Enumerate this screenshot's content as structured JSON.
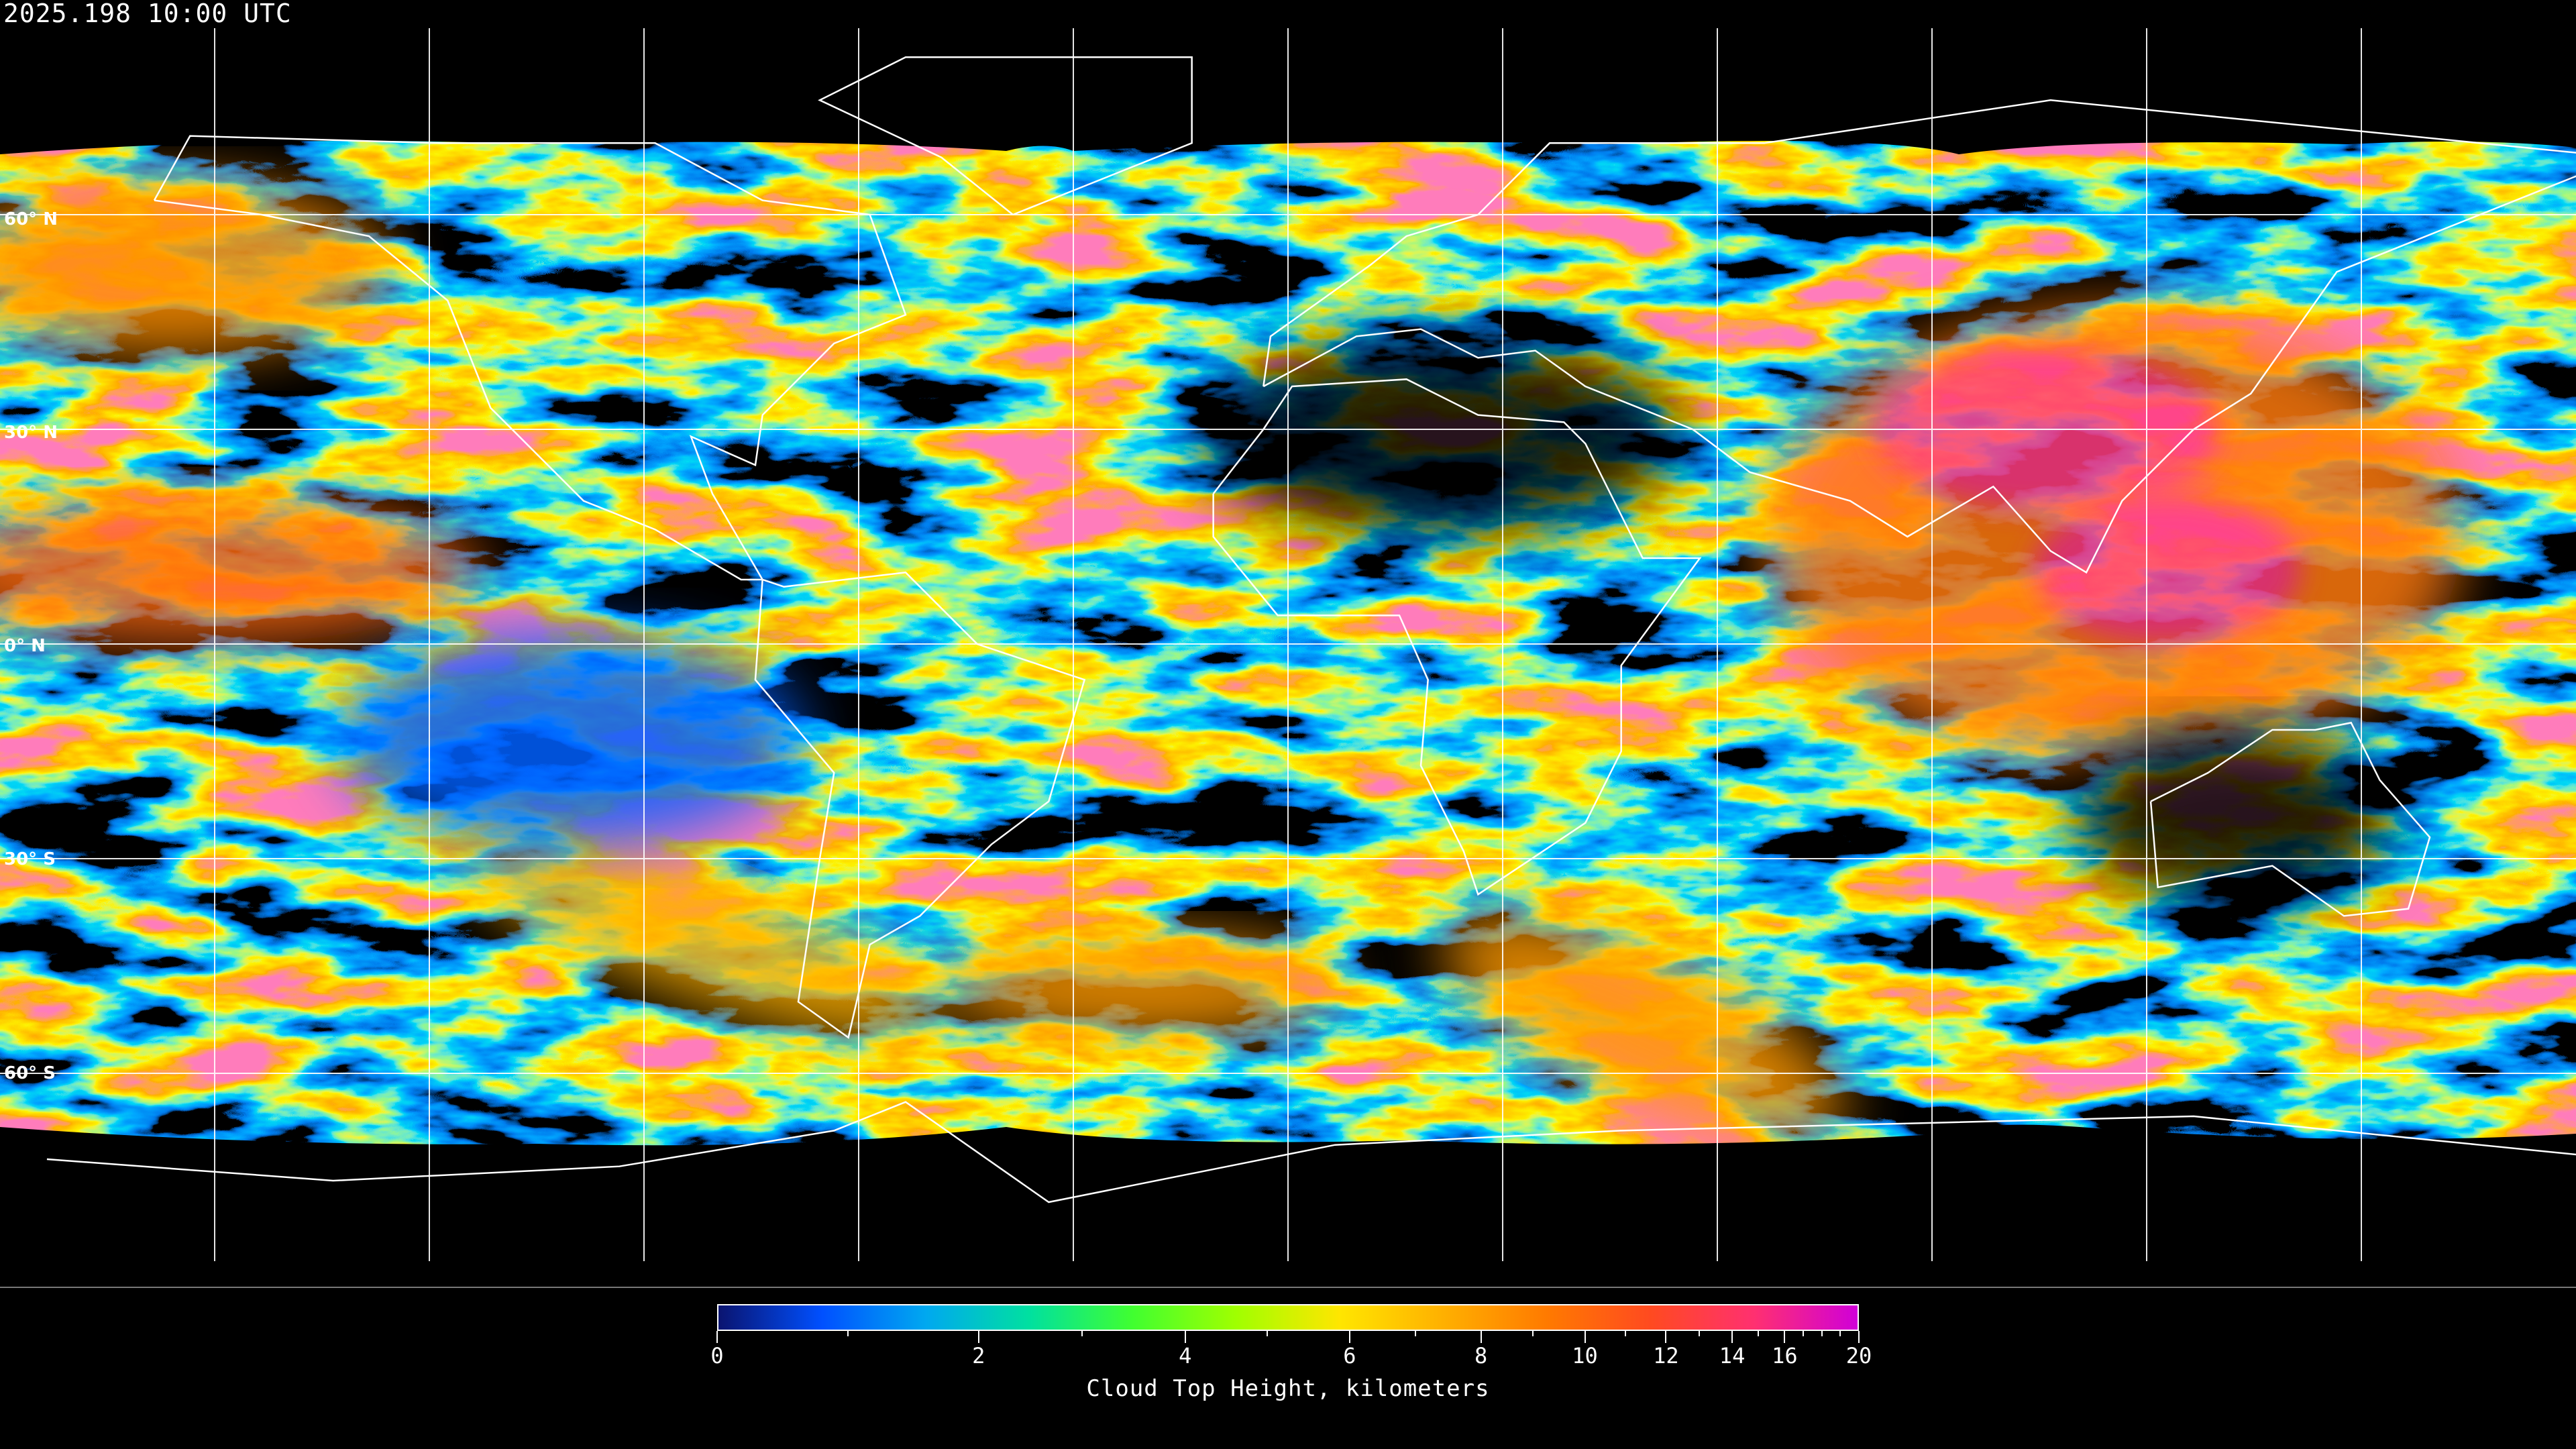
{
  "header": {
    "timestamp": "2025.198 10:00 UTC"
  },
  "map": {
    "projection": "equirectangular",
    "grid_spacing_deg": 30,
    "lat_labels": [
      "60° N",
      "30° N",
      "0° N",
      "30° S",
      "60° S"
    ],
    "lat_values": [
      60,
      30,
      0,
      -30,
      -60
    ],
    "clear_sky_color": "#000000",
    "coastline_color": "#ffffff",
    "gridline_color": "#ffffff"
  },
  "colorbar": {
    "label": "Cloud Top Height, kilometers",
    "min": 0,
    "max": 20,
    "major_ticks": [
      0,
      2,
      4,
      6,
      8,
      10,
      12,
      14,
      16,
      20
    ],
    "major_tick_labels": [
      "0",
      "2",
      "4",
      "6",
      "8",
      "10",
      "12",
      "14",
      "16",
      "20"
    ],
    "minor_ticks": [
      1,
      3,
      5,
      7,
      9,
      11,
      13,
      15,
      17,
      18,
      19
    ],
    "colors": [
      "#0a1470",
      "#0050ff",
      "#00a8f0",
      "#00e0a0",
      "#40ff30",
      "#a0ff00",
      "#ffe600",
      "#ffb000",
      "#ff7a00",
      "#ff4a20",
      "#ff3070",
      "#d000d8"
    ]
  }
}
